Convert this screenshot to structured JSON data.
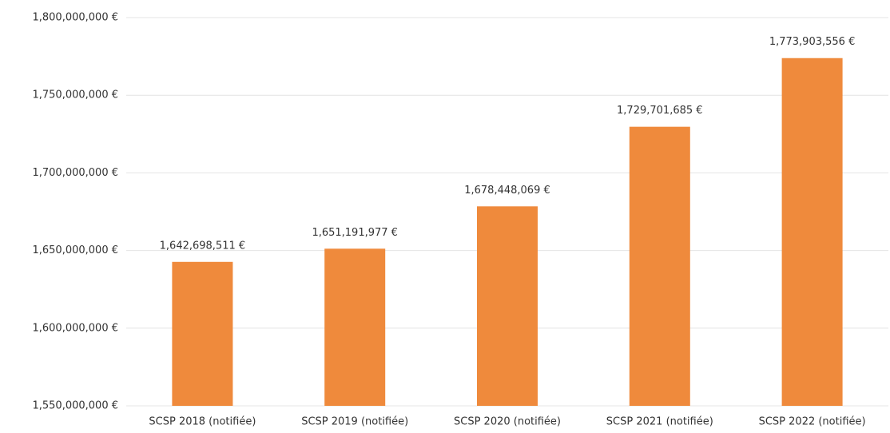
{
  "chart_data": {
    "type": "bar",
    "categories": [
      "SCSP 2018 (notifiée)",
      "SCSP 2019 (notifiée)",
      "SCSP 2020 (notifiée)",
      "SCSP 2021 (notifiée)",
      "SCSP 2022 (notifiée)"
    ],
    "values": [
      1642698511,
      1651191977,
      1678448069,
      1729701685,
      1773903556
    ],
    "value_labels": [
      "1,642,698,511 €",
      "1,651,191,977 €",
      "1,678,448,069 €",
      "1,729,701,685 €",
      "1,773,903,556 €"
    ],
    "color": "#ef8a3c",
    "ylim": [
      1550000000,
      1800000000
    ],
    "yticks": [
      {
        "value": 1550000000,
        "label": "1,550,000,000 €"
      },
      {
        "value": 1600000000,
        "label": "1,600,000,000 €"
      },
      {
        "value": 1650000000,
        "label": "1,650,000,000 €"
      },
      {
        "value": 1700000000,
        "label": "1,700,000,000 €"
      },
      {
        "value": 1750000000,
        "label": "1,750,000,000 €"
      },
      {
        "value": 1800000000,
        "label": "1,800,000,000 €"
      }
    ],
    "grid": true
  }
}
